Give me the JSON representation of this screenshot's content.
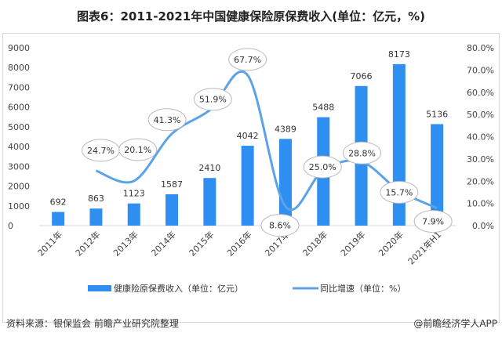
{
  "title": "图表6：2011-2021年中国健康保险原保费收入(单位：亿元，%)",
  "source": "资料来源：银保监会 前瞻产业研究院整理",
  "brand": "@前瞻经济学人APP",
  "colors": {
    "bar": "#2e8ff0",
    "line": "#5ba3e6"
  },
  "chart_data": {
    "type": "bar+line",
    "categories": [
      "2011年",
      "2012年",
      "2013年",
      "2014年",
      "2015年",
      "2016年",
      "2017年",
      "2018年",
      "2019年",
      "2020年",
      "2021年H1"
    ],
    "series": [
      {
        "name": "健康险原保费收入（单位：亿元）",
        "type": "bar",
        "axis": "left",
        "values": [
          692,
          863,
          1123,
          1587,
          2410,
          4042,
          4389,
          5488,
          7066,
          8173,
          5136
        ]
      },
      {
        "name": "同比增速（单位：%）",
        "type": "line",
        "axis": "right",
        "values": [
          null,
          24.7,
          20.1,
          41.3,
          51.9,
          67.7,
          8.6,
          25.0,
          28.8,
          15.7,
          7.9
        ]
      }
    ],
    "left_axis": {
      "ylim": [
        0,
        9000
      ],
      "ticks": [
        "0",
        "1000",
        "2000",
        "3000",
        "4000",
        "5000",
        "6000",
        "7000",
        "8000",
        "9000"
      ]
    },
    "right_axis": {
      "ylim": [
        0,
        80
      ],
      "ticks": [
        "0.0%",
        "10.0%",
        "20.0%",
        "30.0%",
        "40.0%",
        "50.0%",
        "60.0%",
        "70.0%",
        "80.0%"
      ]
    },
    "grid": false,
    "legend": "bottom"
  }
}
